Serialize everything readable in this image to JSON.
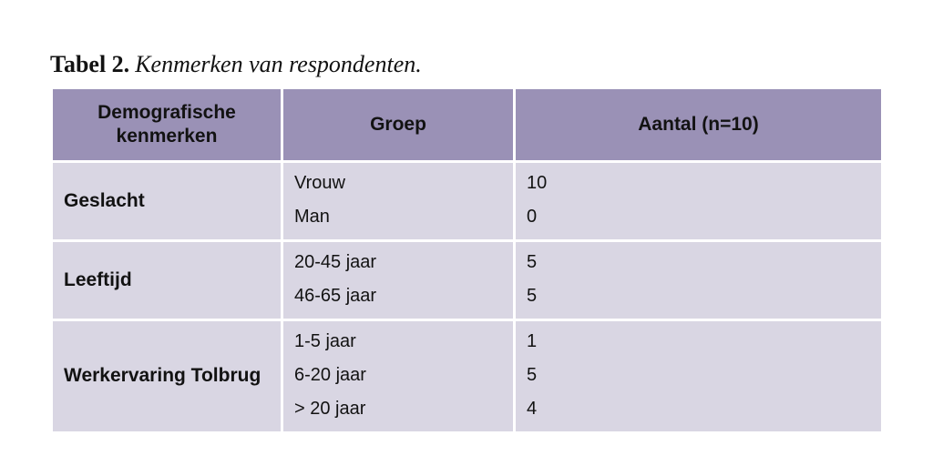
{
  "title": {
    "prefix": "Tabel 2.",
    "text": "Kenmerken van respondenten."
  },
  "table": {
    "columns": {
      "kenmerken": "Demografische kenmerken",
      "groep": "Groep",
      "aantal": "Aantal (n=10)"
    },
    "rows": [
      {
        "kenmerk": "Geslacht",
        "groepen": [
          "Vrouw",
          "Man"
        ],
        "aantallen": [
          "10",
          "0"
        ]
      },
      {
        "kenmerk": "Leeftijd",
        "groepen": [
          "20-45 jaar",
          "46-65 jaar"
        ],
        "aantallen": [
          "5",
          "5"
        ]
      },
      {
        "kenmerk": "Werkervaring Tolbrug",
        "groepen": [
          "1-5 jaar",
          "6-20 jaar",
          "> 20 jaar"
        ],
        "aantallen": [
          "1",
          "5",
          "4"
        ]
      }
    ],
    "colors": {
      "header_bg": "#9a91b6",
      "body_bg": "#d9d6e3",
      "grid": "#ffffff",
      "text": "#121212"
    }
  }
}
